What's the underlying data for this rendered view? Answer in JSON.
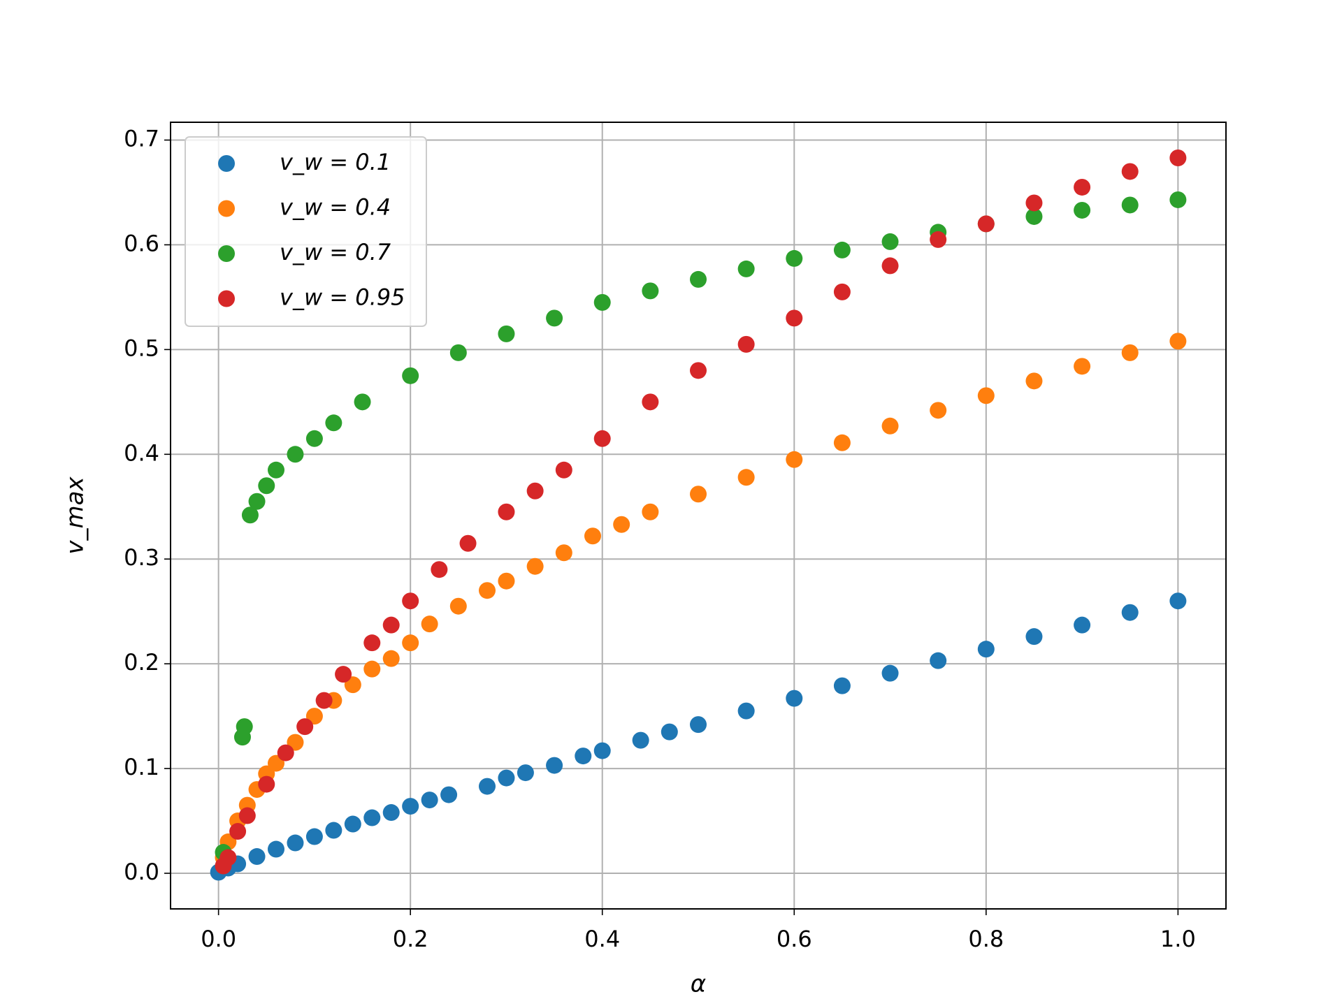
{
  "chart_data": {
    "type": "scatter",
    "x_label": "α",
    "y_label": "v_max",
    "xlim": [
      -0.05,
      1.05
    ],
    "ylim": [
      -0.034,
      0.717
    ],
    "xticks": [
      {
        "value": 0,
        "label": "0.0"
      },
      0.2,
      0.4,
      0.6,
      0.8,
      {
        "value": 1,
        "label": "1.0"
      }
    ],
    "yticks": [
      {
        "value": 0,
        "label": "0.0"
      },
      0.1,
      0.2,
      0.3,
      0.4,
      0.5,
      0.6,
      0.7
    ],
    "grid": true,
    "legend": "upper left",
    "series": [
      {
        "name": "v_w = 0.1",
        "color": "#1f77b4",
        "x": [
          0,
          0.01,
          0.02,
          0.04,
          0.06,
          0.08,
          0.1,
          0.12,
          0.14,
          0.16,
          0.18,
          0.2,
          0.22,
          0.24,
          0.28,
          0.3,
          0.32,
          0.35,
          0.38,
          0.4,
          0.44,
          0.47,
          0.5,
          0.55,
          0.6,
          0.65,
          0.7,
          0.75,
          0.8,
          0.85,
          0.9,
          0.95,
          1.0
        ],
        "values": [
          0.001,
          0.005,
          0.009,
          0.016,
          0.023,
          0.029,
          0.035,
          0.041,
          0.047,
          0.053,
          0.058,
          0.064,
          0.07,
          0.075,
          0.083,
          0.091,
          0.096,
          0.103,
          0.112,
          0.117,
          0.127,
          0.135,
          0.142,
          0.155,
          0.167,
          0.179,
          0.191,
          0.203,
          0.214,
          0.226,
          0.237,
          0.249,
          0.26
        ]
      },
      {
        "name": "v_w = 0.4",
        "color": "#ff7f0e",
        "x": [
          0.005,
          0.01,
          0.02,
          0.03,
          0.04,
          0.05,
          0.06,
          0.08,
          0.1,
          0.12,
          0.14,
          0.16,
          0.18,
          0.2,
          0.22,
          0.25,
          0.28,
          0.3,
          0.33,
          0.36,
          0.39,
          0.42,
          0.45,
          0.5,
          0.55,
          0.6,
          0.65,
          0.7,
          0.75,
          0.8,
          0.85,
          0.9,
          0.95,
          1.0
        ],
        "values": [
          0.015,
          0.03,
          0.05,
          0.065,
          0.08,
          0.095,
          0.105,
          0.125,
          0.15,
          0.165,
          0.18,
          0.195,
          0.205,
          0.22,
          0.238,
          0.255,
          0.27,
          0.279,
          0.293,
          0.306,
          0.322,
          0.333,
          0.345,
          0.362,
          0.378,
          0.395,
          0.411,
          0.427,
          0.442,
          0.456,
          0.47,
          0.484,
          0.497,
          0.508
        ]
      },
      {
        "name": "v_w = 0.7",
        "color": "#2ca02c",
        "x": [
          0.005,
          0.025,
          0.027,
          0.033,
          0.04,
          0.05,
          0.06,
          0.08,
          0.1,
          0.12,
          0.15,
          0.2,
          0.25,
          0.3,
          0.35,
          0.4,
          0.45,
          0.5,
          0.55,
          0.6,
          0.65,
          0.7,
          0.75,
          0.8,
          0.85,
          0.9,
          0.95,
          1.0
        ],
        "values": [
          0.02,
          0.13,
          0.14,
          0.342,
          0.355,
          0.37,
          0.385,
          0.4,
          0.415,
          0.43,
          0.45,
          0.475,
          0.497,
          0.515,
          0.53,
          0.545,
          0.556,
          0.567,
          0.577,
          0.587,
          0.595,
          0.603,
          0.612,
          0.62,
          0.627,
          0.633,
          0.638,
          0.643
        ]
      },
      {
        "name": "v_w = 0.95",
        "color": "#d62728",
        "x": [
          0.005,
          0.01,
          0.02,
          0.03,
          0.05,
          0.07,
          0.09,
          0.11,
          0.13,
          0.16,
          0.18,
          0.2,
          0.23,
          0.26,
          0.3,
          0.33,
          0.36,
          0.4,
          0.45,
          0.5,
          0.55,
          0.6,
          0.65,
          0.7,
          0.75,
          0.8,
          0.85,
          0.9,
          0.95,
          1.0
        ],
        "values": [
          0.007,
          0.015,
          0.04,
          0.055,
          0.085,
          0.115,
          0.14,
          0.165,
          0.19,
          0.22,
          0.237,
          0.26,
          0.29,
          0.315,
          0.345,
          0.365,
          0.385,
          0.415,
          0.45,
          0.48,
          0.505,
          0.53,
          0.555,
          0.58,
          0.605,
          0.62,
          0.64,
          0.655,
          0.67,
          0.683
        ]
      }
    ]
  }
}
